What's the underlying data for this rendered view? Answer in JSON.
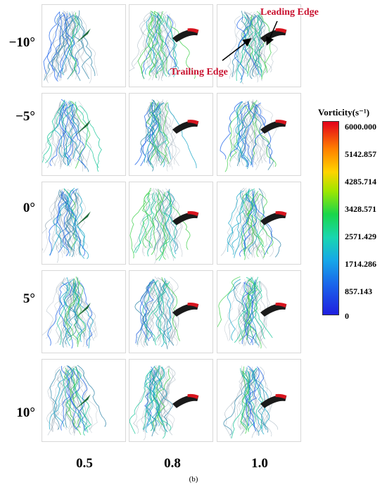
{
  "rows": [
    "−10°",
    "−5°",
    "0°",
    "5°",
    "10°"
  ],
  "columns": [
    "0.5",
    "0.8",
    "1.0"
  ],
  "colorbar": {
    "title": "Vorticity(s⁻¹)",
    "ticks": [
      "6000.000",
      "5142.857",
      "4285.714",
      "3428.571",
      "2571.429",
      "1714.286",
      "857.143",
      "0"
    ],
    "colors": [
      "#e3001b",
      "#ff7f00",
      "#ffd400",
      "#9ee600",
      "#19d64b",
      "#19d6b0",
      "#16a7e8",
      "#1a62ea",
      "#1f1fe0"
    ]
  },
  "annotations": {
    "leading_edge": "Leading Edge",
    "trailing_edge": "Trailing Edge"
  },
  "caption": "(b)"
}
